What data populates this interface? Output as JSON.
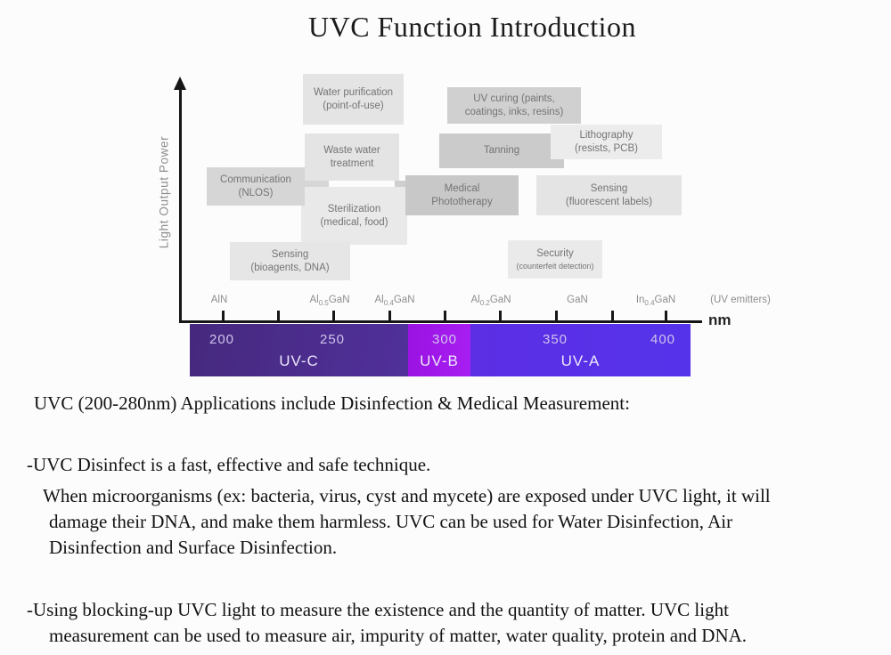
{
  "title": "UVC Function Introduction",
  "figure": {
    "y_axis_label": "Light Output Power",
    "x_axis_unit": "nm",
    "boxes": {
      "water": {
        "line1": "Water purification",
        "line2": "(point-of-use)"
      },
      "waste": {
        "line1": "Waste water",
        "line2": "treatment"
      },
      "uv_curing": {
        "line1": "UV curing (paints,",
        "line2": "coatings, inks, resins)"
      },
      "tanning": {
        "line1": "Tanning",
        "line2": ""
      },
      "lithography": {
        "line1": "Lithography",
        "line2": "(resists, PCB)"
      },
      "communication": {
        "line1": "Communication",
        "line2": "(NLOS)"
      },
      "sterilization": {
        "line1": "Sterilization",
        "line2": "(medical, food)"
      },
      "medical": {
        "line1": "Medical",
        "line2": "Phototherapy"
      },
      "sensing_fluor": {
        "line1": "Sensing",
        "line2": "(fluorescent labels)"
      },
      "sensing_bio": {
        "line1": "Sensing",
        "line2": "(bioagents, DNA)"
      },
      "security": {
        "line1": "Security",
        "line2": "(counterfeit detection)"
      }
    },
    "materials": [
      {
        "pre": "AlN",
        "sub": "",
        "post": ""
      },
      {
        "pre": "Al",
        "sub": "0.5",
        "post": "GaN"
      },
      {
        "pre": "Al",
        "sub": "0.4",
        "post": "GaN"
      },
      {
        "pre": "Al",
        "sub": "0.2",
        "post": "GaN"
      },
      {
        "pre": "GaN",
        "sub": "",
        "post": ""
      },
      {
        "pre": "In",
        "sub": "0.4",
        "post": "GaN"
      },
      {
        "pre": "(UV emitters)",
        "sub": "",
        "post": ""
      }
    ],
    "spectrum": {
      "wavelengths": [
        "200",
        "250",
        "300",
        "350",
        "400"
      ],
      "bands": [
        {
          "label": "UV-C",
          "color": "#4b2c87"
        },
        {
          "label": "UV-B",
          "color": "#a016e9"
        },
        {
          "label": "UV-A",
          "color": "#5a31e8"
        }
      ]
    }
  },
  "body": {
    "intro": "UVC (200-280nm) Applications include Disinfection & Medical Measurement:",
    "bullet1": "-UVC Disinfect is a fast, effective and safe technique.",
    "para1_line1": "When microorganisms (ex: bacteria, virus, cyst and mycete) are exposed under UVC light, it will",
    "para1_line2": "damage their DNA, and make them harmless. UVC can be used for Water Disinfection, Air",
    "para1_line3": "Disinfection and Surface Disinfection.",
    "bullet2_line1": "-Using blocking-up UVC light to measure the existence and the quantity of matter. UVC light",
    "bullet2_line2": "measurement can be used to measure air, impurity of matter, water quality, protein and DNA."
  }
}
